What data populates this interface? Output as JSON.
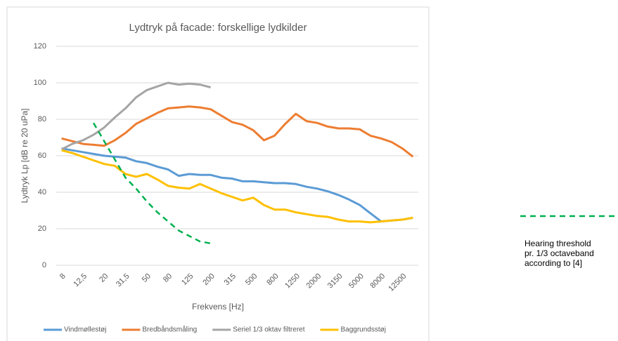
{
  "chart_data": {
    "type": "line",
    "title": "Lydtryk på facade: forskellige lydkilder",
    "x_label": "Frekvens [Hz]",
    "y_label": "Lydtryk Lp [dB re 20 uPa]",
    "categories": [
      "8",
      null,
      "12,5",
      null,
      "20",
      null,
      "31,5",
      null,
      "50",
      null,
      "80",
      null,
      "125",
      null,
      "200",
      null,
      "315",
      null,
      "500",
      null,
      "800",
      null,
      "1250",
      null,
      "2000",
      null,
      "3150",
      null,
      "5000",
      null,
      "8000",
      null,
      "12500",
      null
    ],
    "ylim": [
      0,
      120
    ],
    "yticks": [
      0,
      20,
      40,
      60,
      80,
      100,
      120
    ],
    "grid": true,
    "series": [
      {
        "name": "Vindmøllestøj",
        "color": "#5b9bd5",
        "values": [
          64,
          63,
          62,
          61,
          60,
          59.5,
          59,
          57,
          56,
          54,
          52.5,
          49,
          50,
          49.5,
          49.5,
          48,
          47.5,
          46,
          46,
          45.5,
          45,
          45,
          44.5,
          43,
          42,
          40.5,
          38.5,
          36,
          33,
          28.5,
          24,
          24.5,
          25,
          26
        ]
      },
      {
        "name": "Bredbåndsmåling",
        "color": "#ed7d31",
        "values": [
          69.5,
          68,
          66.5,
          66,
          65.5,
          68.5,
          72.5,
          77.5,
          80.5,
          83.5,
          86,
          86.5,
          87,
          86.5,
          85.5,
          82,
          78.5,
          77,
          74,
          68.5,
          71,
          77.5,
          83,
          79,
          78,
          76,
          75,
          75,
          74.5,
          71,
          69.5,
          67.5,
          64,
          59.5
        ]
      },
      {
        "name": "Seriel 1/3 oktav filtreret",
        "color": "#a5a5a5",
        "values": [
          63.5,
          66.5,
          68.5,
          71.5,
          75.5,
          81,
          86,
          92,
          96,
          98,
          100,
          99,
          99.5,
          99,
          97.5,
          null,
          null,
          null,
          null,
          null,
          null,
          null,
          null,
          null,
          null,
          null,
          null,
          null,
          null,
          null,
          null,
          null,
          null,
          null
        ]
      },
      {
        "name": "Baggrundsstøj",
        "color": "#ffc000",
        "values": [
          63,
          61.5,
          59.5,
          57.5,
          55.5,
          54.5,
          50,
          48.5,
          50,
          47,
          43.5,
          42.5,
          42,
          44.5,
          42,
          39.5,
          37.5,
          35.5,
          37,
          33,
          30.5,
          30.5,
          29,
          28,
          27,
          26.5,
          25,
          24,
          24,
          23.5,
          24,
          24.5,
          25,
          26
        ]
      },
      {
        "name": "Hearing threshold pr. 1/3 octaveband according to [4]",
        "color": "#00b050",
        "dashed": true,
        "values": [
          null,
          null,
          null,
          78,
          68,
          58,
          48,
          42,
          35,
          29,
          24,
          19,
          16,
          13,
          12,
          null,
          null,
          null,
          null,
          null,
          null,
          null,
          null,
          null,
          null,
          null,
          null,
          null,
          null,
          null,
          null,
          null,
          null,
          null
        ]
      }
    ]
  }
}
